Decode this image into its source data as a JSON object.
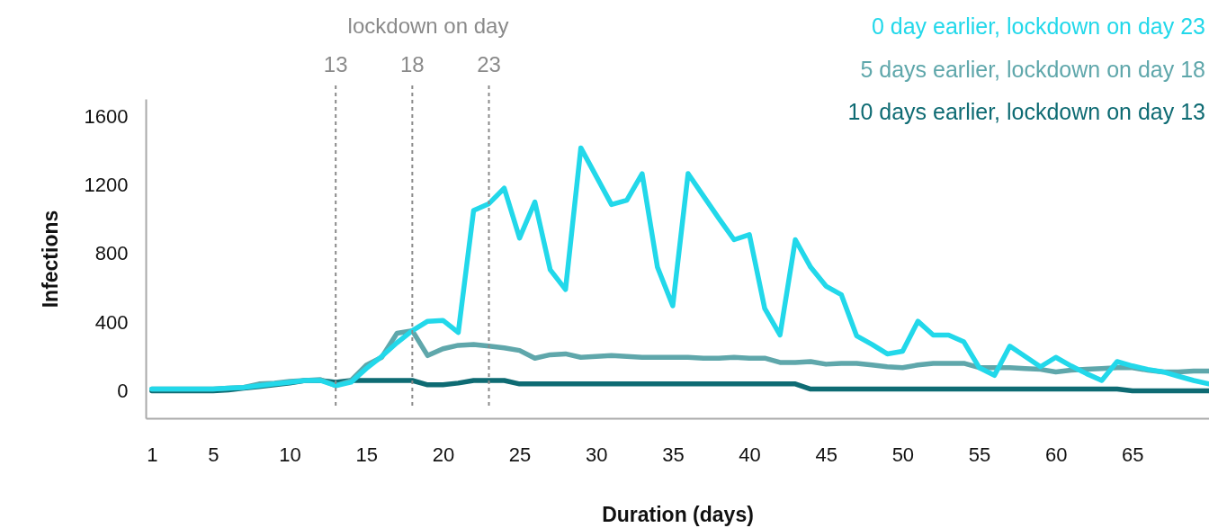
{
  "chart_data": {
    "type": "line",
    "xlabel": "Duration (days)",
    "ylabel": "Infections",
    "annotations": [
      "lockdown on day"
    ],
    "x": [
      1,
      2,
      3,
      4,
      5,
      6,
      7,
      8,
      9,
      10,
      11,
      12,
      13,
      14,
      15,
      16,
      17,
      18,
      19,
      20,
      21,
      22,
      23,
      24,
      25,
      26,
      27,
      28,
      29,
      30,
      31,
      32,
      33,
      34,
      35,
      36,
      37,
      38,
      39,
      40,
      41,
      42,
      43,
      44,
      45,
      46,
      47,
      48,
      49,
      50,
      51,
      52,
      53,
      54,
      55,
      56,
      57,
      58,
      59,
      60,
      61,
      62,
      63,
      64,
      65,
      66,
      67,
      68,
      69,
      70
    ],
    "series": [
      {
        "name": "10 days earlier, lockdown on day 13",
        "color": "#0e6b73",
        "values": [
          0,
          0,
          0,
          0,
          0,
          5,
          15,
          25,
          35,
          45,
          60,
          60,
          50,
          60,
          60,
          60,
          60,
          60,
          35,
          35,
          45,
          60,
          60,
          60,
          40,
          40,
          40,
          40,
          40,
          40,
          40,
          40,
          40,
          40,
          40,
          40,
          40,
          40,
          40,
          40,
          40,
          40,
          40,
          10,
          10,
          10,
          10,
          10,
          10,
          10,
          10,
          10,
          10,
          10,
          10,
          10,
          10,
          10,
          10,
          10,
          10,
          10,
          10,
          10,
          0,
          0,
          0,
          0,
          0,
          0
        ]
      },
      {
        "name": "5 days earlier, lockdown on day 18",
        "color": "#5fa7ab",
        "values": [
          10,
          10,
          10,
          10,
          10,
          15,
          20,
          40,
          45,
          55,
          60,
          65,
          30,
          60,
          150,
          195,
          335,
          350,
          205,
          245,
          265,
          270,
          260,
          250,
          235,
          190,
          210,
          215,
          195,
          200,
          205,
          200,
          195,
          195,
          195,
          195,
          190,
          190,
          195,
          190,
          190,
          165,
          165,
          170,
          155,
          160,
          160,
          150,
          140,
          135,
          150,
          160,
          160,
          160,
          135,
          135,
          135,
          130,
          125,
          110,
          120,
          125,
          130,
          135,
          135,
          120,
          110,
          110,
          115,
          115
        ]
      },
      {
        "name": "0 day earlier, lockdown on day 23",
        "color": "#22d8ea",
        "values": [
          10,
          10,
          10,
          10,
          10,
          15,
          20,
          30,
          40,
          50,
          60,
          60,
          30,
          50,
          130,
          200,
          280,
          350,
          405,
          410,
          340,
          1050,
          1090,
          1180,
          890,
          1100,
          705,
          590,
          1415,
          1250,
          1085,
          1110,
          1265,
          720,
          495,
          1265,
          1135,
          1005,
          880,
          910,
          480,
          325,
          880,
          720,
          610,
          560,
          320,
          270,
          215,
          230,
          405,
          325,
          325,
          285,
          135,
          90,
          260,
          200,
          140,
          195,
          145,
          100,
          60,
          170,
          145,
          125,
          110,
          85,
          60,
          40
        ]
      }
    ],
    "xlim": [
      0.6,
      70
    ],
    "xticks": [
      1,
      5,
      10,
      15,
      20,
      25,
      30,
      35,
      40,
      45,
      50,
      55,
      60,
      65
    ],
    "ylim": [
      -160,
      1700
    ],
    "yticks": [
      0,
      400,
      800,
      1200,
      1600
    ],
    "ref_lines": [
      {
        "axis": "x",
        "value": 13,
        "label": "13",
        "color": "#8a8a8a",
        "line_style": "dotted"
      },
      {
        "axis": "x",
        "value": 18,
        "label": "18",
        "color": "#8a8a8a",
        "line_style": "dotted"
      },
      {
        "axis": "x",
        "value": 23,
        "label": "23",
        "color": "#8a8a8a",
        "line_style": "dotted"
      }
    ],
    "legend": "top right",
    "grid": false,
    "marker": "none",
    "line_style": "solid"
  }
}
